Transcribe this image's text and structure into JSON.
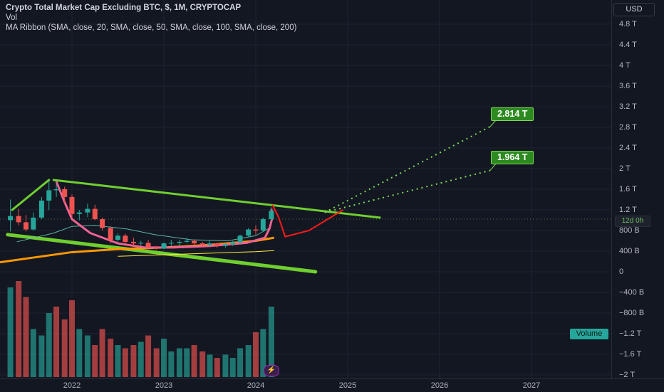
{
  "legend": {
    "title": "Crypto Total Market Cap Excluding BTC, $, 1M, CRYPTOCAP",
    "vol": "Vol",
    "ma": "MA Ribbon (SMA, close, 20, SMA, close, 50, SMA, close, 100, SMA, close, 200)"
  },
  "currency": "USD",
  "price_tag": "12d 0h",
  "volume_tag": "Volume",
  "targets": {
    "high": "2.814 T",
    "low": "1.964 T"
  },
  "flash_icon": "lightning-icon",
  "colors": {
    "background": "#131722",
    "up": "#26a69a",
    "down": "#ef5350",
    "trendline": "#6fcf2f",
    "projection": "#ff1a1a",
    "ma20": "#f06292",
    "ma50": "#5fb3a5",
    "ma100": "#ff9800",
    "ma200": "#ffeb3b",
    "label_bg": "#2c8a1f"
  },
  "chart_data": {
    "type": "candlestick",
    "y_ticks": [
      "4.8 T",
      "4.4 T",
      "4 T",
      "3.6 T",
      "3.2 T",
      "2.8 T",
      "2.4 T",
      "2 T",
      "1.6 T",
      "1.2 T",
      "800 B",
      "400 B",
      "0",
      "−400 B",
      "−800 B",
      "−1.2 T",
      "−1.6 T",
      "−2 T"
    ],
    "x_ticks": [
      "2022",
      "2023",
      "2024",
      "2025",
      "2026",
      "2027"
    ],
    "ylim": [
      -2.0,
      5.0
    ],
    "unit": "T",
    "candles": [
      {
        "t": 2021.33,
        "o": 1.0,
        "h": 1.4,
        "l": 0.78,
        "c": 1.08
      },
      {
        "t": 2021.42,
        "o": 1.08,
        "h": 1.22,
        "l": 0.9,
        "c": 0.96
      },
      {
        "t": 2021.5,
        "o": 0.96,
        "h": 1.1,
        "l": 0.78,
        "c": 0.82
      },
      {
        "t": 2021.58,
        "o": 0.82,
        "h": 1.15,
        "l": 0.8,
        "c": 1.05
      },
      {
        "t": 2021.67,
        "o": 1.05,
        "h": 1.45,
        "l": 1.02,
        "c": 1.38
      },
      {
        "t": 2021.75,
        "o": 1.38,
        "h": 1.75,
        "l": 1.2,
        "c": 1.58
      },
      {
        "t": 2021.83,
        "o": 1.58,
        "h": 1.72,
        "l": 1.45,
        "c": 1.6
      },
      {
        "t": 2021.92,
        "o": 1.6,
        "h": 1.65,
        "l": 1.32,
        "c": 1.45
      },
      {
        "t": 2022.0,
        "o": 1.45,
        "h": 1.5,
        "l": 1.05,
        "c": 1.12
      },
      {
        "t": 2022.08,
        "o": 1.12,
        "h": 1.2,
        "l": 1.0,
        "c": 1.15
      },
      {
        "t": 2022.17,
        "o": 1.15,
        "h": 1.32,
        "l": 1.06,
        "c": 1.22
      },
      {
        "t": 2022.25,
        "o": 1.22,
        "h": 1.3,
        "l": 1.0,
        "c": 1.02
      },
      {
        "t": 2022.33,
        "o": 1.02,
        "h": 1.05,
        "l": 0.8,
        "c": 0.85
      },
      {
        "t": 2022.42,
        "o": 0.85,
        "h": 0.88,
        "l": 0.55,
        "c": 0.62
      },
      {
        "t": 2022.5,
        "o": 0.62,
        "h": 0.75,
        "l": 0.58,
        "c": 0.7
      },
      {
        "t": 2022.58,
        "o": 0.7,
        "h": 0.74,
        "l": 0.55,
        "c": 0.58
      },
      {
        "t": 2022.67,
        "o": 0.58,
        "h": 0.66,
        "l": 0.52,
        "c": 0.55
      },
      {
        "t": 2022.75,
        "o": 0.55,
        "h": 0.6,
        "l": 0.5,
        "c": 0.56
      },
      {
        "t": 2022.83,
        "o": 0.56,
        "h": 0.62,
        "l": 0.42,
        "c": 0.47
      },
      {
        "t": 2022.92,
        "o": 0.47,
        "h": 0.5,
        "l": 0.43,
        "c": 0.45
      },
      {
        "t": 2023.0,
        "o": 0.45,
        "h": 0.57,
        "l": 0.44,
        "c": 0.55
      },
      {
        "t": 2023.08,
        "o": 0.55,
        "h": 0.62,
        "l": 0.5,
        "c": 0.56
      },
      {
        "t": 2023.17,
        "o": 0.56,
        "h": 0.62,
        "l": 0.5,
        "c": 0.58
      },
      {
        "t": 2023.25,
        "o": 0.58,
        "h": 0.66,
        "l": 0.55,
        "c": 0.6
      },
      {
        "t": 2023.33,
        "o": 0.6,
        "h": 0.62,
        "l": 0.52,
        "c": 0.55
      },
      {
        "t": 2023.42,
        "o": 0.55,
        "h": 0.58,
        "l": 0.48,
        "c": 0.52
      },
      {
        "t": 2023.5,
        "o": 0.52,
        "h": 0.6,
        "l": 0.5,
        "c": 0.55
      },
      {
        "t": 2023.58,
        "o": 0.55,
        "h": 0.56,
        "l": 0.47,
        "c": 0.5
      },
      {
        "t": 2023.67,
        "o": 0.5,
        "h": 0.55,
        "l": 0.47,
        "c": 0.53
      },
      {
        "t": 2023.75,
        "o": 0.53,
        "h": 0.6,
        "l": 0.5,
        "c": 0.57
      },
      {
        "t": 2023.83,
        "o": 0.57,
        "h": 0.72,
        "l": 0.55,
        "c": 0.7
      },
      {
        "t": 2023.92,
        "o": 0.7,
        "h": 0.85,
        "l": 0.68,
        "c": 0.82
      },
      {
        "t": 2024.0,
        "o": 0.82,
        "h": 0.9,
        "l": 0.72,
        "c": 0.8
      },
      {
        "t": 2024.08,
        "o": 0.8,
        "h": 1.05,
        "l": 0.78,
        "c": 1.02
      },
      {
        "t": 2024.17,
        "o": 1.02,
        "h": 1.25,
        "l": 0.98,
        "c": 1.18
      }
    ],
    "volumes": [
      2.8,
      3.0,
      2.5,
      1.5,
      1.3,
      2.0,
      2.2,
      1.8,
      2.4,
      1.5,
      1.3,
      1.0,
      1.5,
      1.2,
      1.0,
      0.9,
      1.0,
      1.1,
      1.3,
      0.9,
      1.2,
      0.8,
      0.9,
      0.9,
      1.0,
      0.8,
      0.7,
      0.6,
      0.7,
      0.6,
      0.9,
      1.0,
      1.4,
      1.5,
      2.2
    ],
    "volume_up": [
      true,
      false,
      false,
      true,
      true,
      true,
      false,
      false,
      false,
      true,
      true,
      false,
      false,
      false,
      true,
      false,
      false,
      true,
      false,
      false,
      true,
      true,
      true,
      true,
      false,
      false,
      true,
      false,
      true,
      true,
      true,
      true,
      false,
      true,
      true
    ],
    "ma20": [
      [
        2021.83,
        1.75
      ],
      [
        2021.92,
        1.35
      ],
      [
        2022.0,
        1.02
      ],
      [
        2022.2,
        0.75
      ],
      [
        2022.5,
        0.55
      ],
      [
        2022.8,
        0.47
      ],
      [
        2023.1,
        0.47
      ],
      [
        2023.5,
        0.5
      ],
      [
        2023.9,
        0.56
      ],
      [
        2024.1,
        0.66
      ],
      [
        2024.15,
        0.84
      ],
      [
        2024.18,
        1.05
      ],
      [
        2024.17,
        1.22
      ]
    ],
    "ma50": [
      [
        2021.4,
        0.58
      ],
      [
        2021.8,
        0.75
      ],
      [
        2022.0,
        0.88
      ],
      [
        2022.25,
        0.9
      ],
      [
        2022.6,
        0.83
      ],
      [
        2022.9,
        0.72
      ],
      [
        2023.3,
        0.62
      ],
      [
        2023.7,
        0.6
      ],
      [
        2024.0,
        0.7
      ],
      [
        2024.15,
        0.85
      ]
    ],
    "ma100": [
      [
        2021.2,
        0.18
      ],
      [
        2021.6,
        0.28
      ],
      [
        2022.0,
        0.38
      ],
      [
        2022.5,
        0.44
      ],
      [
        2023.0,
        0.47
      ],
      [
        2023.5,
        0.52
      ],
      [
        2024.0,
        0.6
      ],
      [
        2024.2,
        0.66
      ]
    ],
    "ma200": [
      [
        2022.5,
        0.3
      ],
      [
        2023.0,
        0.33
      ],
      [
        2023.5,
        0.36
      ],
      [
        2024.0,
        0.39
      ],
      [
        2024.2,
        0.41
      ]
    ],
    "trendlines": [
      {
        "from": [
          2021.35,
          1.2
        ],
        "to": [
          2021.75,
          1.78
        ]
      },
      {
        "from": [
          2021.8,
          1.78
        ],
        "to": [
          2025.35,
          1.05
        ]
      },
      {
        "from": [
          2021.3,
          0.72
        ],
        "to": [
          2024.65,
          0.0
        ]
      }
    ],
    "projection_path": [
      [
        2024.18,
        1.3
      ],
      [
        2024.25,
        1.05
      ],
      [
        2024.32,
        0.68
      ],
      [
        2024.58,
        0.8
      ],
      [
        2024.95,
        1.2
      ]
    ],
    "dotted_targets": [
      {
        "from": [
          2024.75,
          1.15
        ],
        "to": [
          2026.55,
          2.814
        ]
      },
      {
        "from": [
          2024.75,
          1.15
        ],
        "to": [
          2026.55,
          1.964
        ]
      }
    ]
  }
}
